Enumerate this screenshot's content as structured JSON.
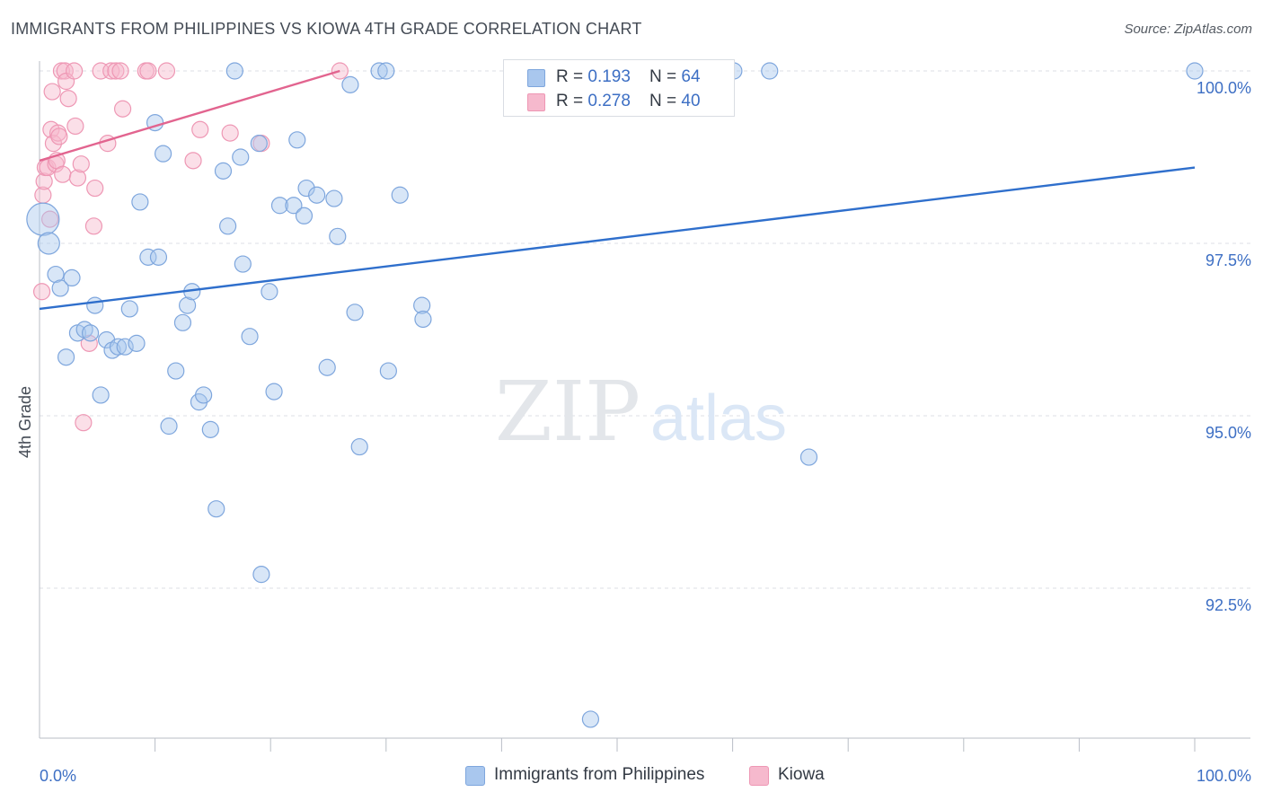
{
  "header": {
    "title": "IMMIGRANTS FROM PHILIPPINES VS KIOWA 4TH GRADE CORRELATION CHART",
    "source": "Source: ZipAtlas.com"
  },
  "watermark": {
    "zip": "ZIP",
    "atlas": "atlas"
  },
  "legend": {
    "items": [
      {
        "r_label": "R = ",
        "r_value": "0.193",
        "n_label": "N = ",
        "n_value": "64"
      },
      {
        "r_label": "R = ",
        "r_value": "0.278",
        "n_label": "N = ",
        "n_value": "40"
      }
    ]
  },
  "colors": {
    "blue_fill": "#a9c7ee",
    "blue_stroke": "#7ea6dd",
    "blue_line": "#2f6fcc",
    "pink_fill": "#f6b9cd",
    "pink_stroke": "#ee97b4",
    "pink_line": "#e2648f",
    "axis_label": "#3d6fc4",
    "grid": "#dcdfe4"
  },
  "chart_data": {
    "type": "scatter",
    "title": "IMMIGRANTS FROM PHILIPPINES VS KIOWA 4TH GRADE CORRELATION CHART",
    "xlabel": "",
    "ylabel": "4th Grade",
    "xlim": [
      0,
      100
    ],
    "ylim": [
      90.3,
      100.2
    ],
    "x_tick_labels": [
      "0.0%",
      "100.0%"
    ],
    "y_ticks": [
      {
        "value": 100.0,
        "label": "100.0%"
      },
      {
        "value": 97.5,
        "label": "97.5%"
      },
      {
        "value": 95.0,
        "label": "95.0%"
      },
      {
        "value": 92.5,
        "label": "92.5%"
      }
    ],
    "series": [
      {
        "name": "Immigrants from Philippines",
        "r": 0.193,
        "n": 64,
        "trend": {
          "x": [
            0,
            100
          ],
          "y": [
            96.55,
            98.6
          ]
        },
        "points": [
          {
            "x": 0.3,
            "y": 97.85,
            "s": 18
          },
          {
            "x": 0.8,
            "y": 97.5,
            "s": 12
          },
          {
            "x": 1.4,
            "y": 97.05,
            "s": 9
          },
          {
            "x": 1.8,
            "y": 96.85,
            "s": 9
          },
          {
            "x": 2.3,
            "y": 95.85,
            "s": 9
          },
          {
            "x": 2.8,
            "y": 97.0,
            "s": 9
          },
          {
            "x": 3.3,
            "y": 96.2,
            "s": 9
          },
          {
            "x": 3.9,
            "y": 96.25,
            "s": 9
          },
          {
            "x": 4.4,
            "y": 96.2,
            "s": 9
          },
          {
            "x": 4.8,
            "y": 96.6,
            "s": 9
          },
          {
            "x": 5.3,
            "y": 95.3,
            "s": 9
          },
          {
            "x": 5.8,
            "y": 96.1,
            "s": 9
          },
          {
            "x": 6.3,
            "y": 95.95,
            "s": 9
          },
          {
            "x": 6.8,
            "y": 96.0,
            "s": 9
          },
          {
            "x": 7.4,
            "y": 96.0,
            "s": 9
          },
          {
            "x": 7.8,
            "y": 96.55,
            "s": 9
          },
          {
            "x": 8.4,
            "y": 96.05,
            "s": 9
          },
          {
            "x": 8.7,
            "y": 98.1,
            "s": 9
          },
          {
            "x": 9.4,
            "y": 97.3,
            "s": 9
          },
          {
            "x": 10.0,
            "y": 99.25,
            "s": 9
          },
          {
            "x": 10.3,
            "y": 97.3,
            "s": 9
          },
          {
            "x": 10.7,
            "y": 98.8,
            "s": 9
          },
          {
            "x": 11.2,
            "y": 94.85,
            "s": 9
          },
          {
            "x": 11.8,
            "y": 95.65,
            "s": 9
          },
          {
            "x": 12.4,
            "y": 96.35,
            "s": 9
          },
          {
            "x": 12.8,
            "y": 96.6,
            "s": 9
          },
          {
            "x": 13.2,
            "y": 96.8,
            "s": 9
          },
          {
            "x": 13.8,
            "y": 95.2,
            "s": 9
          },
          {
            "x": 14.2,
            "y": 95.3,
            "s": 9
          },
          {
            "x": 14.8,
            "y": 94.8,
            "s": 9
          },
          {
            "x": 15.3,
            "y": 93.65,
            "s": 9
          },
          {
            "x": 15.9,
            "y": 98.55,
            "s": 9
          },
          {
            "x": 16.3,
            "y": 97.75,
            "s": 9
          },
          {
            "x": 16.9,
            "y": 100.0,
            "s": 9
          },
          {
            "x": 17.4,
            "y": 98.75,
            "s": 9
          },
          {
            "x": 17.6,
            "y": 97.2,
            "s": 9
          },
          {
            "x": 18.2,
            "y": 96.15,
            "s": 9
          },
          {
            "x": 19.0,
            "y": 98.95,
            "s": 9
          },
          {
            "x": 19.2,
            "y": 92.7,
            "s": 9
          },
          {
            "x": 19.9,
            "y": 96.8,
            "s": 9
          },
          {
            "x": 20.3,
            "y": 95.35,
            "s": 9
          },
          {
            "x": 20.8,
            "y": 98.05,
            "s": 9
          },
          {
            "x": 22.0,
            "y": 98.05,
            "s": 9
          },
          {
            "x": 22.3,
            "y": 99.0,
            "s": 9
          },
          {
            "x": 22.9,
            "y": 97.9,
            "s": 9
          },
          {
            "x": 23.1,
            "y": 98.3,
            "s": 9
          },
          {
            "x": 24.0,
            "y": 98.2,
            "s": 9
          },
          {
            "x": 24.9,
            "y": 95.7,
            "s": 9
          },
          {
            "x": 25.5,
            "y": 98.15,
            "s": 9
          },
          {
            "x": 25.8,
            "y": 97.6,
            "s": 9
          },
          {
            "x": 26.9,
            "y": 99.8,
            "s": 9
          },
          {
            "x": 27.3,
            "y": 96.5,
            "s": 9
          },
          {
            "x": 27.7,
            "y": 94.55,
            "s": 9
          },
          {
            "x": 29.4,
            "y": 100.0,
            "s": 9
          },
          {
            "x": 30.0,
            "y": 100.0,
            "s": 9
          },
          {
            "x": 30.2,
            "y": 95.65,
            "s": 9
          },
          {
            "x": 31.2,
            "y": 98.2,
            "s": 9
          },
          {
            "x": 33.1,
            "y": 96.6,
            "s": 9
          },
          {
            "x": 33.2,
            "y": 96.4,
            "s": 9
          },
          {
            "x": 47.7,
            "y": 90.6,
            "s": 9
          },
          {
            "x": 60.1,
            "y": 100.0,
            "s": 9
          },
          {
            "x": 63.2,
            "y": 100.0,
            "s": 9
          },
          {
            "x": 66.6,
            "y": 94.4,
            "s": 9
          },
          {
            "x": 100.0,
            "y": 100.0,
            "s": 9
          }
        ]
      },
      {
        "name": "Kiowa",
        "r": 0.278,
        "n": 40,
        "trend": {
          "x": [
            0,
            26.0
          ],
          "y": [
            98.7,
            100.0
          ]
        },
        "points": [
          {
            "x": 0.2,
            "y": 96.8,
            "s": 9
          },
          {
            "x": 0.3,
            "y": 98.2,
            "s": 9
          },
          {
            "x": 0.4,
            "y": 98.4,
            "s": 9
          },
          {
            "x": 0.5,
            "y": 98.6,
            "s": 9
          },
          {
            "x": 0.7,
            "y": 98.6,
            "s": 9
          },
          {
            "x": 0.9,
            "y": 97.85,
            "s": 9
          },
          {
            "x": 1.0,
            "y": 99.15,
            "s": 9
          },
          {
            "x": 1.1,
            "y": 99.7,
            "s": 9
          },
          {
            "x": 1.2,
            "y": 98.95,
            "s": 9
          },
          {
            "x": 1.4,
            "y": 98.65,
            "s": 9
          },
          {
            "x": 1.5,
            "y": 98.7,
            "s": 9
          },
          {
            "x": 1.6,
            "y": 99.1,
            "s": 9
          },
          {
            "x": 1.7,
            "y": 99.05,
            "s": 9
          },
          {
            "x": 1.9,
            "y": 100.0,
            "s": 9
          },
          {
            "x": 2.0,
            "y": 98.5,
            "s": 9
          },
          {
            "x": 2.2,
            "y": 100.0,
            "s": 9
          },
          {
            "x": 2.3,
            "y": 99.85,
            "s": 9
          },
          {
            "x": 2.5,
            "y": 99.6,
            "s": 9
          },
          {
            "x": 3.0,
            "y": 100.0,
            "s": 9
          },
          {
            "x": 3.1,
            "y": 99.2,
            "s": 9
          },
          {
            "x": 3.3,
            "y": 98.45,
            "s": 9
          },
          {
            "x": 3.6,
            "y": 98.65,
            "s": 9
          },
          {
            "x": 3.8,
            "y": 94.9,
            "s": 9
          },
          {
            "x": 4.3,
            "y": 96.05,
            "s": 9
          },
          {
            "x": 4.7,
            "y": 97.75,
            "s": 9
          },
          {
            "x": 4.8,
            "y": 98.3,
            "s": 9
          },
          {
            "x": 5.3,
            "y": 100.0,
            "s": 9
          },
          {
            "x": 5.9,
            "y": 98.95,
            "s": 9
          },
          {
            "x": 6.2,
            "y": 100.0,
            "s": 9
          },
          {
            "x": 6.6,
            "y": 100.0,
            "s": 9
          },
          {
            "x": 7.0,
            "y": 100.0,
            "s": 9
          },
          {
            "x": 7.2,
            "y": 99.45,
            "s": 9
          },
          {
            "x": 9.2,
            "y": 100.0,
            "s": 9
          },
          {
            "x": 9.4,
            "y": 100.0,
            "s": 9
          },
          {
            "x": 11.0,
            "y": 100.0,
            "s": 9
          },
          {
            "x": 13.3,
            "y": 98.7,
            "s": 9
          },
          {
            "x": 13.9,
            "y": 99.15,
            "s": 9
          },
          {
            "x": 16.5,
            "y": 99.1,
            "s": 9
          },
          {
            "x": 19.2,
            "y": 98.95,
            "s": 9
          },
          {
            "x": 26.0,
            "y": 100.0,
            "s": 9
          }
        ]
      }
    ]
  }
}
